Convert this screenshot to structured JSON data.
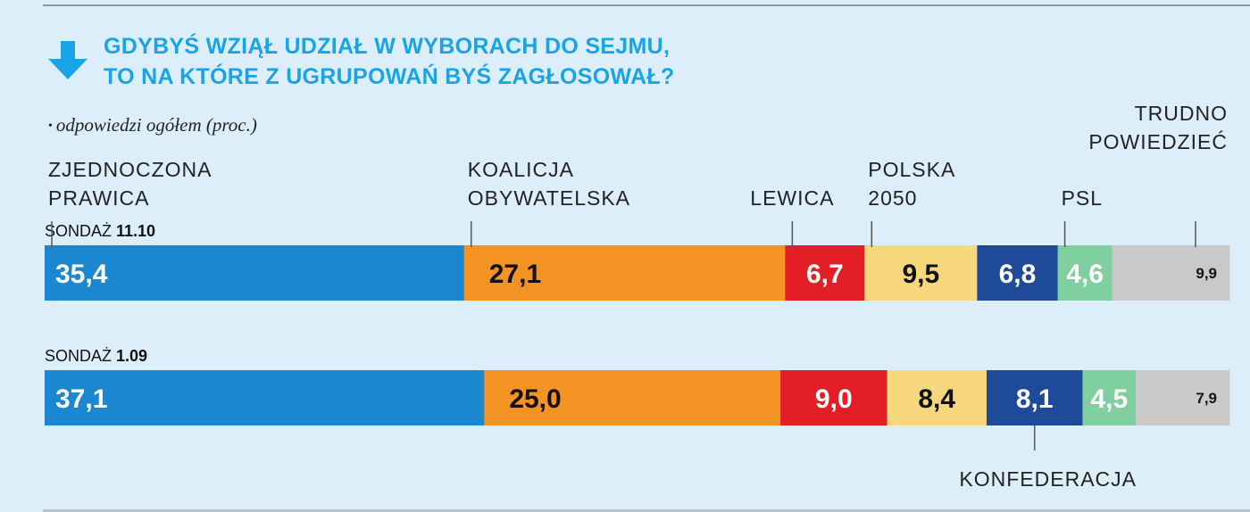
{
  "title_line_1": "GDYBYŚ WZIĄŁ UDZIAŁ W WYBORACH DO SEJMU,",
  "title_line_2": "TO NA KTÓRE Z UGRUPOWAŃ BYŚ ZAGŁOSOWAŁ?",
  "subtitle_bullet": "•",
  "subtitle": "odpowiedzi ogółem (proc.)",
  "icons": {
    "header": "arrow-down-icon"
  },
  "chart_data": {
    "type": "bar",
    "orientation": "horizontal-stacked",
    "categories": [
      "SONDAŻ 11.10",
      "SONDAŻ 1.09"
    ],
    "category_parts": [
      {
        "prefix": "SONDAŻ",
        "date": "11.10"
      },
      {
        "prefix": "SONDAŻ",
        "date": "1.09"
      }
    ],
    "series": [
      {
        "name": "ZJEDNOCZONA PRAWICA",
        "values": [
          35.4,
          37.1
        ],
        "labels": [
          "35,4",
          "37,1"
        ],
        "color": "#1b87d0",
        "text_color": "#ffffff"
      },
      {
        "name": "KOALICJA OBYWATELSKA",
        "values": [
          27.1,
          25.0
        ],
        "labels": [
          "27,1",
          "25,0"
        ],
        "color": "#f39324",
        "text_color": "#111111"
      },
      {
        "name": "LEWICA",
        "values": [
          6.7,
          9.0
        ],
        "labels": [
          "6,7",
          "9,0"
        ],
        "color": "#e41e26",
        "text_color": "#ffffff"
      },
      {
        "name": "POLSKA 2050",
        "values": [
          9.5,
          8.4
        ],
        "labels": [
          "9,5",
          "8,4"
        ],
        "color": "#f7d77c",
        "text_color": "#111111"
      },
      {
        "name": "KONFEDERACJA",
        "values": [
          6.8,
          8.1
        ],
        "labels": [
          "6,8",
          "8,1"
        ],
        "color": "#1f4a9a",
        "text_color": "#ffffff"
      },
      {
        "name": "PSL",
        "values": [
          4.6,
          4.5
        ],
        "labels": [
          "4,6",
          "4,5"
        ],
        "color": "#7fcf9f",
        "text_color": "#ffffff"
      },
      {
        "name": "TRUDNO POWIEDZIEĆ",
        "values": [
          9.9,
          7.9
        ],
        "labels": [
          "9,9",
          "7,9"
        ],
        "color": "#c9c9c9",
        "text_color": "#111111"
      }
    ],
    "legend_labels": [
      {
        "series": 0,
        "lines": [
          "ZJEDNOCZONA",
          "PRAWICA"
        ],
        "placement": "above-bar-1"
      },
      {
        "series": 1,
        "lines": [
          "KOALICJA",
          "OBYWATELSKA"
        ],
        "placement": "above-bar-1"
      },
      {
        "series": 2,
        "lines": [
          "LEWICA"
        ],
        "placement": "above-bar-1"
      },
      {
        "series": 3,
        "lines": [
          "POLSKA",
          "2050"
        ],
        "placement": "above-bar-1"
      },
      {
        "series": 5,
        "lines": [
          "PSL"
        ],
        "placement": "above-bar-1"
      },
      {
        "series": 6,
        "lines": [
          "TRUDNO",
          "POWIEDZIEĆ"
        ],
        "placement": "above-bar-1"
      },
      {
        "series": 4,
        "lines": [
          "KONFEDERACJA"
        ],
        "placement": "below-bar-2"
      }
    ],
    "grid": false,
    "legend": "inline-labels"
  }
}
